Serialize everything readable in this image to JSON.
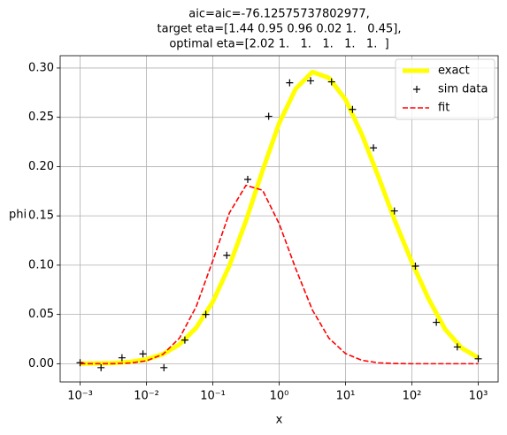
{
  "chart_data": {
    "type": "line",
    "title": [
      "aic=aic=-76.12575737802977,",
      "target eta=[1.44 0.95 0.96 0.02 1.   0.45],",
      "optimal eta=[2.02 1.   1.   1.   1.   1.  ]"
    ],
    "xlabel": "x",
    "ylabel": "phi",
    "xscale": "log",
    "grid": true,
    "legend": "upper right",
    "xlim": [
      0.000501,
      1995
    ],
    "ylim": [
      -0.0185,
      0.3125
    ],
    "xticks": [
      {
        "value": 0.001,
        "label": "10⁻³"
      },
      {
        "value": 0.01,
        "label": "10⁻²"
      },
      {
        "value": 0.1,
        "label": "10⁻¹"
      },
      {
        "value": 1,
        "label": "10⁰"
      },
      {
        "value": 10,
        "label": "10¹"
      },
      {
        "value": 100,
        "label": "10²"
      },
      {
        "value": 1000,
        "label": "10³"
      }
    ],
    "yticks": [
      {
        "value": 0,
        "label": "0.00"
      },
      {
        "value": 0.05,
        "label": "0.05"
      },
      {
        "value": 0.1,
        "label": "0.10"
      },
      {
        "value": 0.15,
        "label": "0.15"
      },
      {
        "value": 0.2,
        "label": "0.20"
      },
      {
        "value": 0.25,
        "label": "0.25"
      },
      {
        "value": 0.3,
        "label": "0.30"
      }
    ],
    "series": [
      {
        "name": "exact",
        "color": "#ffff00",
        "style": "line",
        "linewidth": 5,
        "x": [
          0.001,
          0.001778,
          0.003162,
          0.005623,
          0.01,
          0.01778,
          0.03162,
          0.05623,
          0.1,
          0.1778,
          0.3162,
          0.5623,
          1,
          1.778,
          3.162,
          5.623,
          10,
          17.78,
          31.62,
          56.23,
          100,
          177.8,
          316.2,
          562.3,
          1000
        ],
        "values": [
          0.0001,
          0.0003,
          0.0007,
          0.0019,
          0.0044,
          0.0097,
          0.0196,
          0.0365,
          0.0628,
          0.0994,
          0.145,
          0.196,
          0.244,
          0.279,
          0.296,
          0.29,
          0.268,
          0.232,
          0.189,
          0.144,
          0.103,
          0.066,
          0.035,
          0.016,
          0.006
        ]
      },
      {
        "name": "sim data",
        "color": "#000000",
        "style": "marker",
        "x": [
          0.001,
          0.002069,
          0.004281,
          0.008859,
          0.01833,
          0.03793,
          0.07848,
          0.1624,
          0.336,
          0.6952,
          1.438,
          2.976,
          6.158,
          12.74,
          26.37,
          54.56,
          112.9,
          233.6,
          483.3,
          1000
        ],
        "values": [
          0.001,
          -0.004,
          0.006,
          0.01,
          -0.004,
          0.024,
          0.05,
          0.11,
          0.187,
          0.251,
          0.285,
          0.287,
          0.286,
          0.258,
          0.219,
          0.155,
          0.099,
          0.042,
          0.017,
          0.005
        ]
      },
      {
        "name": "fit",
        "color": "#ff0000",
        "style": "dashed",
        "linewidth": 1.6,
        "x": [
          0.001,
          0.001778,
          0.003162,
          0.005623,
          0.01,
          0.01778,
          0.03162,
          0.05623,
          0.1,
          0.1778,
          0.3162,
          0.5623,
          1,
          1.778,
          3.162,
          5.623,
          10,
          17.78,
          31.62,
          56.23,
          100,
          177.8,
          316.2,
          562.3,
          1000
        ],
        "values": [
          0,
          0.0001,
          0.0001,
          0.0007,
          0.0029,
          0.0096,
          0.0262,
          0.058,
          0.1045,
          0.153,
          0.181,
          0.176,
          0.142,
          0.0964,
          0.0546,
          0.0259,
          0.0103,
          0.0034,
          0.0009,
          0.0002,
          0,
          0,
          0,
          0,
          0
        ]
      }
    ]
  }
}
